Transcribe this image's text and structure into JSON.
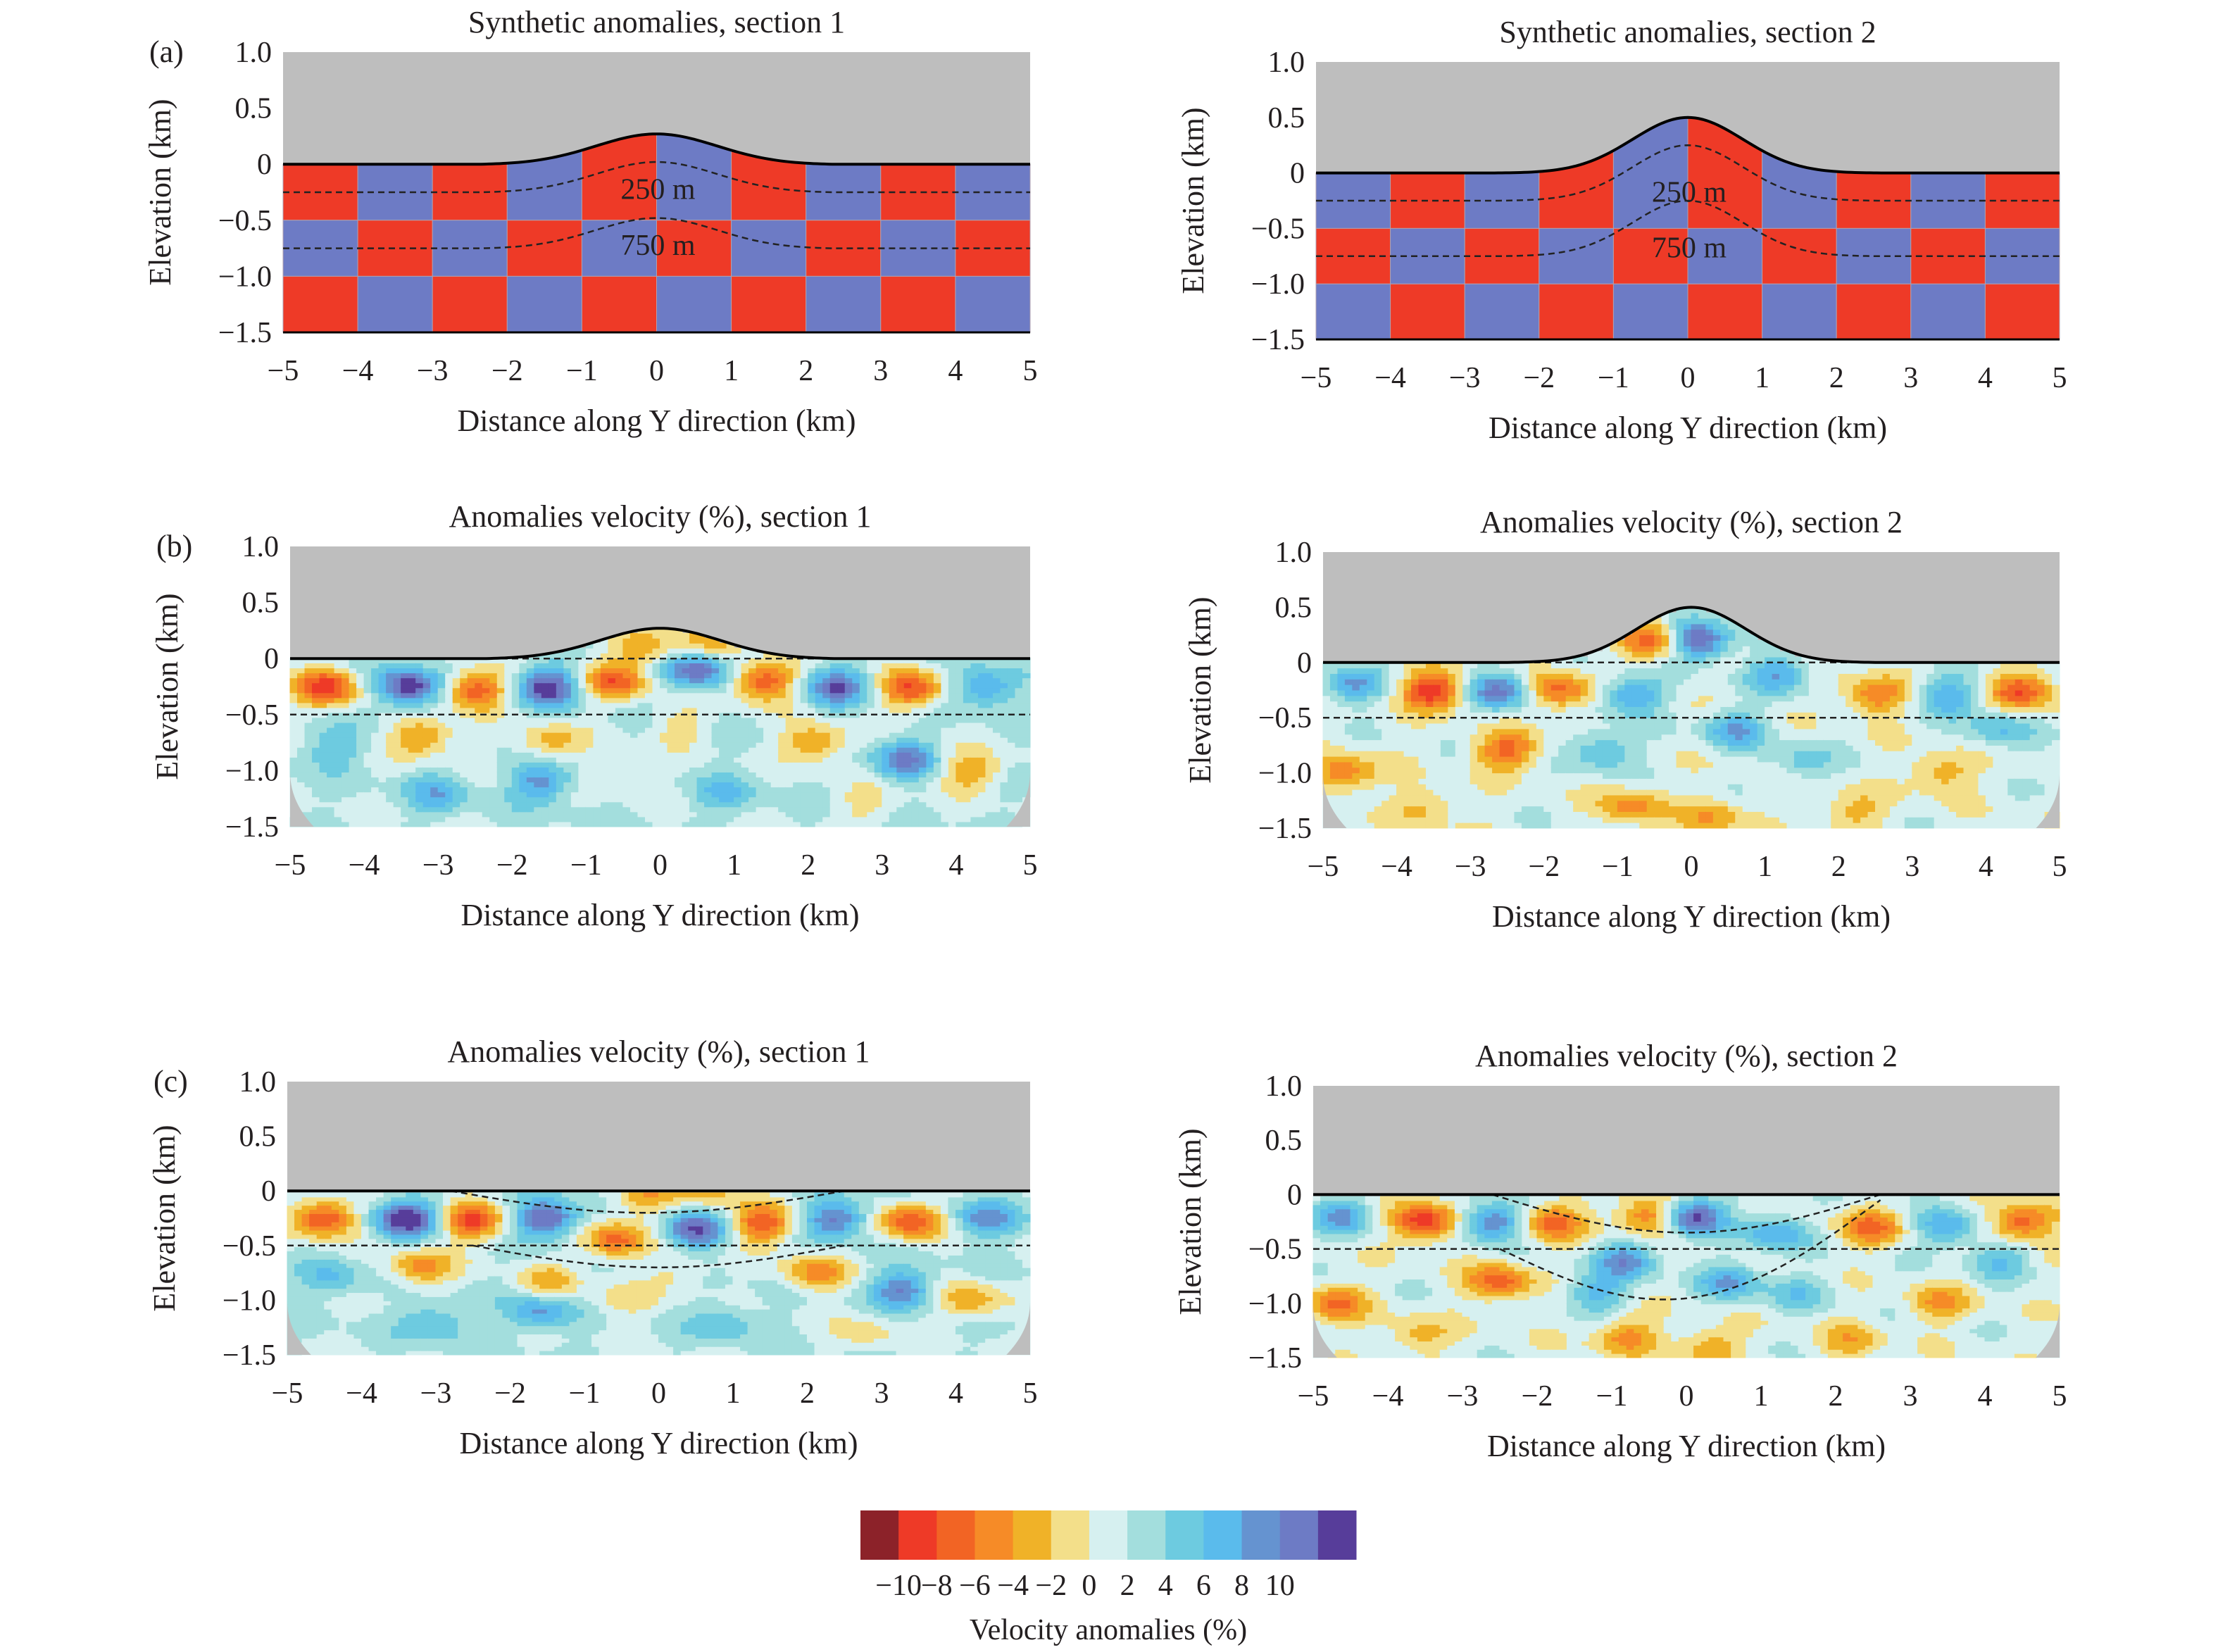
{
  "colorbar": {
    "colors": [
      "#8c2229",
      "#ee3a27",
      "#f26424",
      "#f68b27",
      "#f0b228",
      "#f3df8a",
      "#d6f0f0",
      "#a3dedd",
      "#6dcbe0",
      "#5abbec",
      "#6593d0",
      "#6d7bc5",
      "#573d9a"
    ],
    "ticks": [
      "−10",
      "−8",
      "−6",
      "−4",
      "−2",
      "0",
      "2",
      "4",
      "6",
      "8",
      "10"
    ],
    "label": "Velocity anomalies (%)"
  },
  "chart_data": [
    {
      "panel": "(a)",
      "type": "heatmap",
      "title": "Synthetic anomalies, section 1",
      "xlabel": "Distance along Y direction (km)",
      "ylabel": "Elevation (km)",
      "xlim": [
        -5,
        5
      ],
      "ylim": [
        -1.5,
        1.0
      ],
      "xticks": [
        "−5",
        "−4",
        "−3",
        "−2",
        "−1",
        "0",
        "1",
        "2",
        "3",
        "4",
        "5"
      ],
      "yticks": [
        "1.0",
        "0.5",
        "0",
        "−0.5",
        "−1.0",
        "−1.5"
      ],
      "topography_peak_km": 0.27,
      "checkerboard": {
        "cell_width_km": 1,
        "cell_height_km": 0.5,
        "anomaly_pct": 10,
        "first_cell": "negative",
        "colors": {
          "negative": "#ee3a27",
          "positive": "#6d7bc5"
        }
      },
      "depth_lines": [
        {
          "label": "250 m",
          "depth_km": 0.25
        },
        {
          "label": "750 m",
          "depth_km": 0.75
        }
      ]
    },
    {
      "panel": "",
      "type": "heatmap",
      "title": "Synthetic anomalies, section 2",
      "xlabel": "Distance along Y direction (km)",
      "ylabel": "Elevation (km)",
      "xlim": [
        -5,
        5
      ],
      "ylim": [
        -1.5,
        1.0
      ],
      "xticks": [
        "−5",
        "−4",
        "−3",
        "−2",
        "−1",
        "0",
        "1",
        "2",
        "3",
        "4",
        "5"
      ],
      "yticks": [
        "1.0",
        "0.5",
        "0",
        "−0.5",
        "−1.0",
        "−1.5"
      ],
      "topography_peak_km": 0.5,
      "checkerboard": {
        "cell_width_km": 1,
        "cell_height_km": 0.5,
        "anomaly_pct": 10,
        "first_cell": "positive",
        "colors": {
          "negative": "#ee3a27",
          "positive": "#6d7bc5"
        }
      },
      "depth_lines": [
        {
          "label": "250 m",
          "depth_km": 0.25
        },
        {
          "label": "750 m",
          "depth_km": 0.75
        }
      ]
    },
    {
      "panel": "(b)",
      "type": "heatmap",
      "title": "Anomalies velocity (%), section 1",
      "xlabel": "Distance along Y direction (km)",
      "ylabel": "Elevation (km)",
      "xlim": [
        -5,
        5
      ],
      "ylim": [
        -1.5,
        1.0
      ],
      "xticks": [
        "−5",
        "−4",
        "−3",
        "−2",
        "−1",
        "0",
        "1",
        "2",
        "3",
        "4",
        "5"
      ],
      "yticks": [
        "1.0",
        "0.5",
        "0",
        "−0.5",
        "−1.0",
        "−1.5"
      ],
      "topography_peak_km": 0.27,
      "background_pct": 2,
      "anomalies": [
        [
          -4.5,
          -0.25,
          -11
        ],
        [
          -3.4,
          -0.25,
          12
        ],
        [
          -2.5,
          -0.28,
          -10
        ],
        [
          -1.5,
          -0.25,
          11
        ],
        [
          -0.6,
          -0.2,
          -9
        ],
        [
          0.5,
          -0.1,
          10
        ],
        [
          1.4,
          -0.2,
          -10
        ],
        [
          2.4,
          -0.25,
          9
        ],
        [
          3.4,
          -0.27,
          -10
        ],
        [
          4.4,
          -0.25,
          7
        ],
        [
          -0.2,
          0.1,
          -6
        ],
        [
          0.7,
          0.15,
          -5
        ],
        [
          -3.2,
          -0.7,
          -7
        ],
        [
          -1.5,
          -0.75,
          -5
        ],
        [
          0.3,
          -0.6,
          -3
        ],
        [
          2.1,
          -0.75,
          -7
        ],
        [
          3.3,
          -0.9,
          8
        ],
        [
          4.2,
          -1.0,
          -6
        ],
        [
          -4.4,
          -0.8,
          4
        ],
        [
          -3.0,
          -1.2,
          5
        ],
        [
          -1.6,
          -1.1,
          7
        ],
        [
          0.9,
          -1.2,
          4
        ],
        [
          2.8,
          -1.3,
          -3
        ],
        [
          -0.5,
          -1.0,
          -3
        ]
      ],
      "dashed_lines_km": [
        0,
        -0.5
      ]
    },
    {
      "panel": "",
      "type": "heatmap",
      "title": "Anomalies velocity (%), section 2",
      "xlabel": "Distance along Y direction (km)",
      "ylabel": "Elevation (km)",
      "xlim": [
        -5,
        5
      ],
      "ylim": [
        -1.5,
        1.0
      ],
      "xticks": [
        "−5",
        "−4",
        "−3",
        "−2",
        "−1",
        "0",
        "1",
        "2",
        "3",
        "4",
        "5"
      ],
      "yticks": [
        "1.0",
        "0.5",
        "0",
        "−0.5",
        "−1.0",
        "−1.5"
      ],
      "topography_peak_km": 0.5,
      "background_pct": 1,
      "anomalies": [
        [
          -4.6,
          -0.2,
          7
        ],
        [
          -3.5,
          -0.25,
          -11
        ],
        [
          -2.6,
          -0.25,
          10
        ],
        [
          -1.8,
          -0.25,
          -8
        ],
        [
          -0.8,
          -0.3,
          8
        ],
        [
          0.1,
          0.2,
          12
        ],
        [
          -0.5,
          0.2,
          -8
        ],
        [
          1.2,
          -0.1,
          7
        ],
        [
          2.5,
          -0.3,
          -7
        ],
        [
          3.5,
          -0.3,
          7
        ],
        [
          4.5,
          -0.25,
          -9
        ],
        [
          -4.7,
          -1.0,
          -7
        ],
        [
          -2.5,
          -0.8,
          -8
        ],
        [
          -0.8,
          -1.3,
          -6
        ],
        [
          0.3,
          -1.4,
          -5
        ],
        [
          -1.2,
          -0.8,
          6
        ],
        [
          0.6,
          -0.6,
          7
        ],
        [
          1.5,
          -0.9,
          4
        ],
        [
          3.4,
          -1.0,
          -5
        ],
        [
          4.2,
          -0.6,
          5
        ],
        [
          -3.6,
          -1.3,
          -4
        ],
        [
          2.2,
          -1.35,
          -4
        ]
      ],
      "dashed_lines_km": [
        0,
        -0.5
      ]
    },
    {
      "panel": "(c)",
      "type": "heatmap",
      "title": "Anomalies velocity (%), section 1",
      "xlabel": "Distance along Y direction (km)",
      "ylabel": "Elevation (km)",
      "xlim": [
        -5,
        5
      ],
      "ylim": [
        -1.5,
        1.0
      ],
      "xticks": [
        "−5",
        "−4",
        "−3",
        "−2",
        "−1",
        "0",
        "1",
        "2",
        "3",
        "4",
        "5"
      ],
      "yticks": [
        "1.0",
        "0.5",
        "0",
        "−0.5",
        "−1.0",
        "−1.5"
      ],
      "topography_peak_km": 0,
      "background_pct": 2,
      "anomalies": [
        [
          -4.5,
          -0.25,
          -11
        ],
        [
          -3.4,
          -0.25,
          12
        ],
        [
          -2.5,
          -0.28,
          -10
        ],
        [
          -1.5,
          -0.25,
          11
        ],
        [
          -0.6,
          -0.45,
          -9
        ],
        [
          0.5,
          -0.35,
          10
        ],
        [
          1.4,
          -0.3,
          -10
        ],
        [
          2.4,
          -0.25,
          9
        ],
        [
          3.4,
          -0.27,
          -10
        ],
        [
          4.4,
          -0.25,
          7
        ],
        [
          -0.2,
          -0.05,
          -6
        ],
        [
          0.7,
          -0.02,
          -5
        ],
        [
          -3.2,
          -0.7,
          -7
        ],
        [
          -1.5,
          -0.85,
          -5
        ],
        [
          0.3,
          -0.75,
          -3
        ],
        [
          2.1,
          -0.75,
          -7
        ],
        [
          3.3,
          -0.9,
          8
        ],
        [
          4.2,
          -1.0,
          -6
        ],
        [
          -4.4,
          -0.8,
          4
        ],
        [
          -3.0,
          -1.2,
          5
        ],
        [
          -1.6,
          -1.1,
          7
        ],
        [
          0.9,
          -1.2,
          4
        ],
        [
          2.8,
          -1.3,
          -3
        ],
        [
          -0.5,
          -1.0,
          -3
        ]
      ],
      "dashed_lines_km": [
        -0.5
      ]
    },
    {
      "panel": "",
      "type": "heatmap",
      "title": "Anomalies velocity (%), section 2",
      "xlabel": "Distance along Y direction (km)",
      "ylabel": "Elevation (km)",
      "xlim": [
        -5,
        5
      ],
      "ylim": [
        -1.5,
        1.0
      ],
      "xticks": [
        "−5",
        "−4",
        "−3",
        "−2",
        "−1",
        "0",
        "1",
        "2",
        "3",
        "4",
        "5"
      ],
      "yticks": [
        "1.0",
        "0.5",
        "0",
        "−0.5",
        "−1.0",
        "−1.5"
      ],
      "topography_peak_km": 0,
      "background_pct": 1,
      "anomalies": [
        [
          -4.6,
          -0.2,
          7
        ],
        [
          -3.5,
          -0.25,
          -11
        ],
        [
          -2.6,
          -0.25,
          10
        ],
        [
          -1.8,
          -0.25,
          -8
        ],
        [
          -0.8,
          -0.6,
          8
        ],
        [
          0.1,
          -0.2,
          12
        ],
        [
          -0.5,
          -0.2,
          -8
        ],
        [
          1.2,
          -0.35,
          7
        ],
        [
          2.5,
          -0.3,
          -7
        ],
        [
          3.5,
          -0.3,
          7
        ],
        [
          4.5,
          -0.25,
          -9
        ],
        [
          -4.7,
          -1.0,
          -7
        ],
        [
          -2.5,
          -0.8,
          -8
        ],
        [
          -0.8,
          -1.3,
          -6
        ],
        [
          0.3,
          -1.4,
          -5
        ],
        [
          -1.2,
          -0.9,
          6
        ],
        [
          0.6,
          -0.8,
          7
        ],
        [
          1.5,
          -0.9,
          4
        ],
        [
          3.4,
          -1.0,
          -5
        ],
        [
          4.2,
          -0.6,
          5
        ],
        [
          -3.6,
          -1.3,
          -4
        ],
        [
          2.2,
          -1.35,
          -4
        ]
      ],
      "dashed_lines_km": [
        -0.5
      ]
    }
  ]
}
